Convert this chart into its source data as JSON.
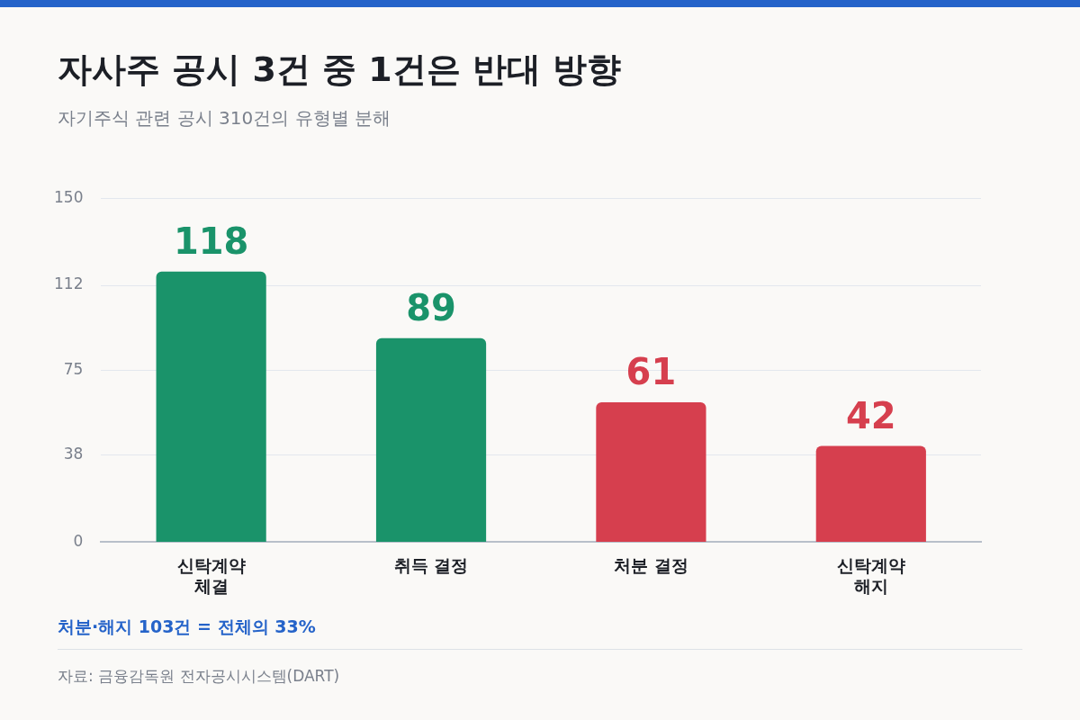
{
  "chart_data": {
    "type": "bar",
    "title": "자사주 공시 3건 중 1건은 반대 방향",
    "subtitle": "자기주식 관련 공시 310건의 유형별 분해",
    "categories": [
      "신탁계약\n체결",
      "취득 결정",
      "처분 결정",
      "신탁계약\n해지"
    ],
    "values": [
      118,
      89,
      61,
      42
    ],
    "colors": [
      "#1a936a",
      "#1a936a",
      "#d63f4e",
      "#d63f4e"
    ],
    "ylim": [
      0,
      150
    ],
    "yticks": [
      0,
      38,
      75,
      112,
      150
    ],
    "grid": "y",
    "data_labels": true,
    "legend": false,
    "annotations": [
      "처분·해지 103건 = 전체의 33%",
      "자료: 금융감독원 전자공시시스템(DART)"
    ]
  }
}
